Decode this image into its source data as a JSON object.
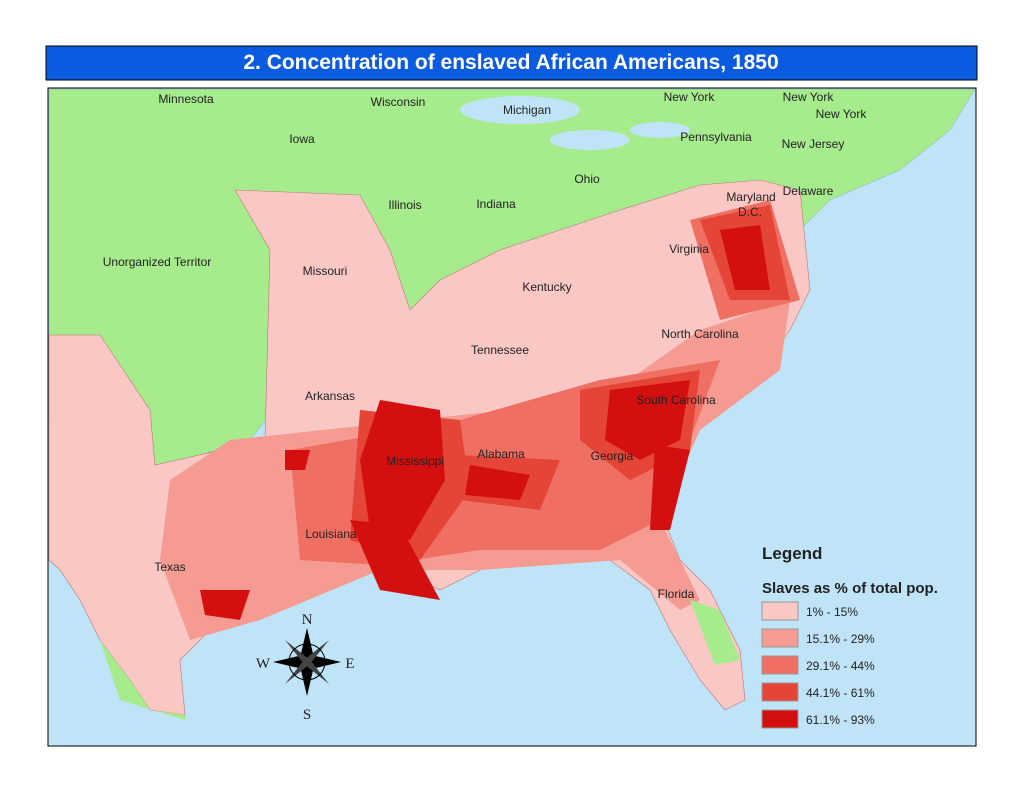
{
  "header": {
    "title": "2.  Concentration of enslaved African Americans, 1850"
  },
  "map": {
    "labels": [
      "Minnesota",
      "Wisconsin",
      "Michigan",
      "New York",
      "New York",
      "New York",
      "Iowa",
      "Pennsylvania",
      "New Jersey",
      "Ohio",
      "Illinois",
      "Indiana",
      "Maryland",
      "Delaware",
      "D.C.",
      "Unorganized Territor",
      "Missouri",
      "Virginia",
      "Kentucky",
      "North Carolina",
      "Tennessee",
      "Arkansas",
      "South Carolina",
      "Mississippi",
      "Alabama",
      "Georgia",
      "Louisiana",
      "Texas",
      "Florida"
    ]
  },
  "compass": {
    "n": "N",
    "e": "E",
    "s": "S",
    "w": "W"
  },
  "legend": {
    "title": "Legend",
    "subtitle": "Slaves as % of total pop.",
    "items": [
      {
        "label": "1% - 15%",
        "color": "#f9c8c5"
      },
      {
        "label": "15.1% - 29%",
        "color": "#f59b92"
      },
      {
        "label": "29.1% - 44%",
        "color": "#ef6f63"
      },
      {
        "label": "44.1% - 61%",
        "color": "#e54536"
      },
      {
        "label": "61.1% - 93%",
        "color": "#d40f0f"
      }
    ]
  }
}
